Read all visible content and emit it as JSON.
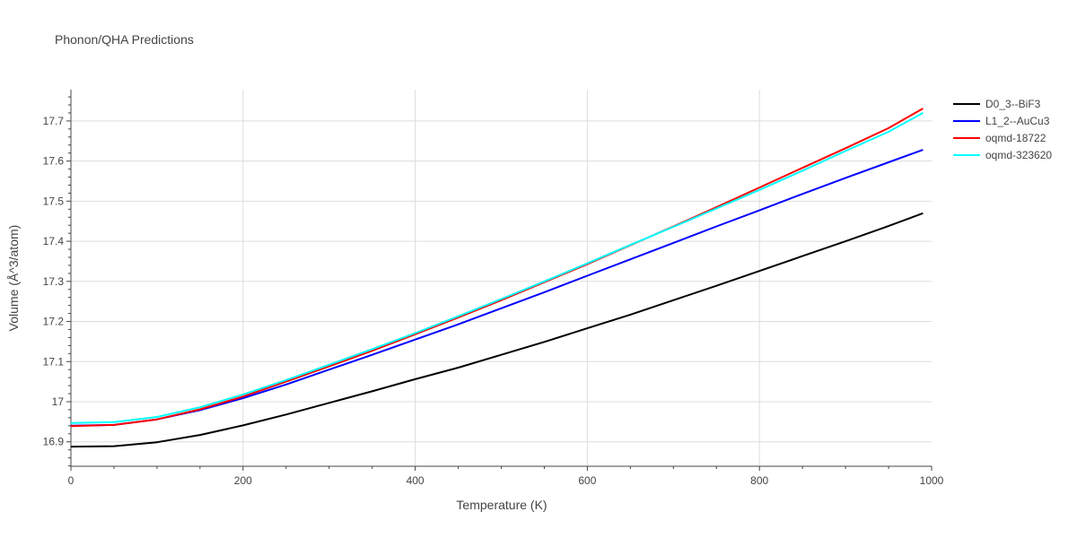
{
  "chart_data": {
    "type": "line",
    "title": "Phonon/QHA Predictions",
    "xlabel": "Temperature (K)",
    "ylabel": "Volume (Å^3/atom)",
    "xlim": [
      0,
      1000
    ],
    "ylim": [
      16.839,
      17.778
    ],
    "x_ticks": [
      0,
      200,
      400,
      600,
      800,
      1000
    ],
    "x_tick_labels": [
      "0",
      "200",
      "400",
      "600",
      "800",
      "1000"
    ],
    "y_ticks": [
      16.9,
      17.0,
      17.1,
      17.2,
      17.3,
      17.4,
      17.5,
      17.6,
      17.7
    ],
    "y_tick_labels": [
      "16.9",
      "17",
      "17.1",
      "17.2",
      "17.3",
      "17.4",
      "17.5",
      "17.6",
      "17.7"
    ],
    "grid": true,
    "legend_position": "top-right",
    "series": [
      {
        "name": "D0_3--BiF3",
        "color": "#000000",
        "x": [
          0,
          50,
          100,
          150,
          200,
          250,
          300,
          350,
          400,
          450,
          500,
          550,
          600,
          650,
          700,
          750,
          800,
          850,
          900,
          950,
          990
        ],
        "y": [
          16.888,
          16.889,
          16.899,
          16.917,
          16.941,
          16.968,
          16.997,
          17.026,
          17.056,
          17.085,
          17.117,
          17.149,
          17.183,
          17.217,
          17.253,
          17.289,
          17.326,
          17.363,
          17.4,
          17.438,
          17.47
        ]
      },
      {
        "name": "L1_2--AuCu3",
        "color": "#0000ff",
        "x": [
          0,
          50,
          100,
          150,
          200,
          250,
          300,
          350,
          400,
          450,
          500,
          550,
          600,
          650,
          700,
          750,
          800,
          850,
          900,
          950,
          990
        ],
        "y": [
          16.94,
          16.942,
          16.956,
          16.979,
          17.009,
          17.043,
          17.08,
          17.117,
          17.155,
          17.193,
          17.233,
          17.273,
          17.314,
          17.355,
          17.396,
          17.437,
          17.477,
          17.518,
          17.558,
          17.597,
          17.628
        ]
      },
      {
        "name": "oqmd-18722",
        "color": "#ff0000",
        "x": [
          0,
          50,
          100,
          150,
          200,
          250,
          300,
          350,
          400,
          450,
          500,
          550,
          600,
          650,
          700,
          750,
          800,
          850,
          900,
          950,
          990
        ],
        "y": [
          16.939,
          16.942,
          16.956,
          16.981,
          17.013,
          17.05,
          17.088,
          17.127,
          17.168,
          17.21,
          17.253,
          17.298,
          17.343,
          17.39,
          17.437,
          17.485,
          17.534,
          17.583,
          17.632,
          17.682,
          17.731
        ]
      },
      {
        "name": "oqmd-323620",
        "color": "#00ffff",
        "x": [
          0,
          50,
          100,
          150,
          200,
          250,
          300,
          350,
          400,
          450,
          500,
          550,
          600,
          650,
          700,
          750,
          800,
          850,
          900,
          950,
          990
        ],
        "y": [
          16.947,
          16.949,
          16.962,
          16.986,
          17.018,
          17.054,
          17.092,
          17.131,
          17.171,
          17.213,
          17.256,
          17.3,
          17.345,
          17.391,
          17.436,
          17.482,
          17.528,
          17.576,
          17.625,
          17.673,
          17.72
        ]
      }
    ]
  }
}
